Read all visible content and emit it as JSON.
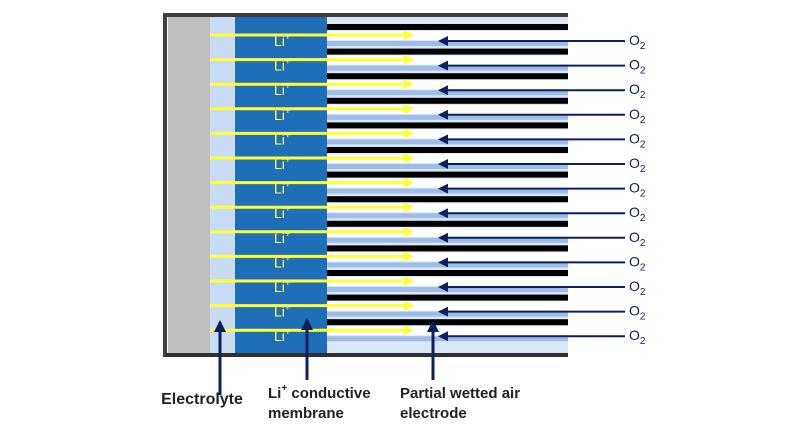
{
  "rows": [
    {
      "ion": {
        "base": "Li",
        "sup": "+"
      },
      "gas": {
        "base": "O",
        "sub": "2"
      }
    },
    {
      "ion": {
        "base": "Li",
        "sup": "+"
      },
      "gas": {
        "base": "O",
        "sub": "2"
      }
    },
    {
      "ion": {
        "base": "Li",
        "sup": "+"
      },
      "gas": {
        "base": "O",
        "sub": "2"
      }
    },
    {
      "ion": {
        "base": "Li",
        "sup": "+"
      },
      "gas": {
        "base": "O",
        "sub": "2"
      }
    },
    {
      "ion": {
        "base": "Li",
        "sup": "+"
      },
      "gas": {
        "base": "O",
        "sub": "2"
      }
    },
    {
      "ion": {
        "base": "Li",
        "sup": "+"
      },
      "gas": {
        "base": "O",
        "sub": "2"
      }
    },
    {
      "ion": {
        "base": "Li",
        "sup": "+"
      },
      "gas": {
        "base": "O",
        "sub": "2"
      }
    },
    {
      "ion": {
        "base": "Li",
        "sup": "+"
      },
      "gas": {
        "base": "O",
        "sub": "2"
      }
    },
    {
      "ion": {
        "base": "Li",
        "sup": "+"
      },
      "gas": {
        "base": "O",
        "sub": "2"
      }
    },
    {
      "ion": {
        "base": "Li",
        "sup": "+"
      },
      "gas": {
        "base": "O",
        "sub": "2"
      }
    },
    {
      "ion": {
        "base": "Li",
        "sup": "+"
      },
      "gas": {
        "base": "O",
        "sub": "2"
      }
    },
    {
      "ion": {
        "base": "Li",
        "sup": "+"
      },
      "gas": {
        "base": "O",
        "sub": "2"
      }
    },
    {
      "ion": {
        "base": "Li",
        "sup": "+"
      },
      "gas": {
        "base": "O",
        "sub": "2"
      }
    }
  ],
  "labels": {
    "electrolyte": "Electrolyte",
    "membrane": {
      "base": "Li",
      "sup": "+",
      "text": " conductive",
      "line2": "membrane"
    },
    "electrode": {
      "line1": "Partial wetted air",
      "line2": "electrode"
    }
  }
}
